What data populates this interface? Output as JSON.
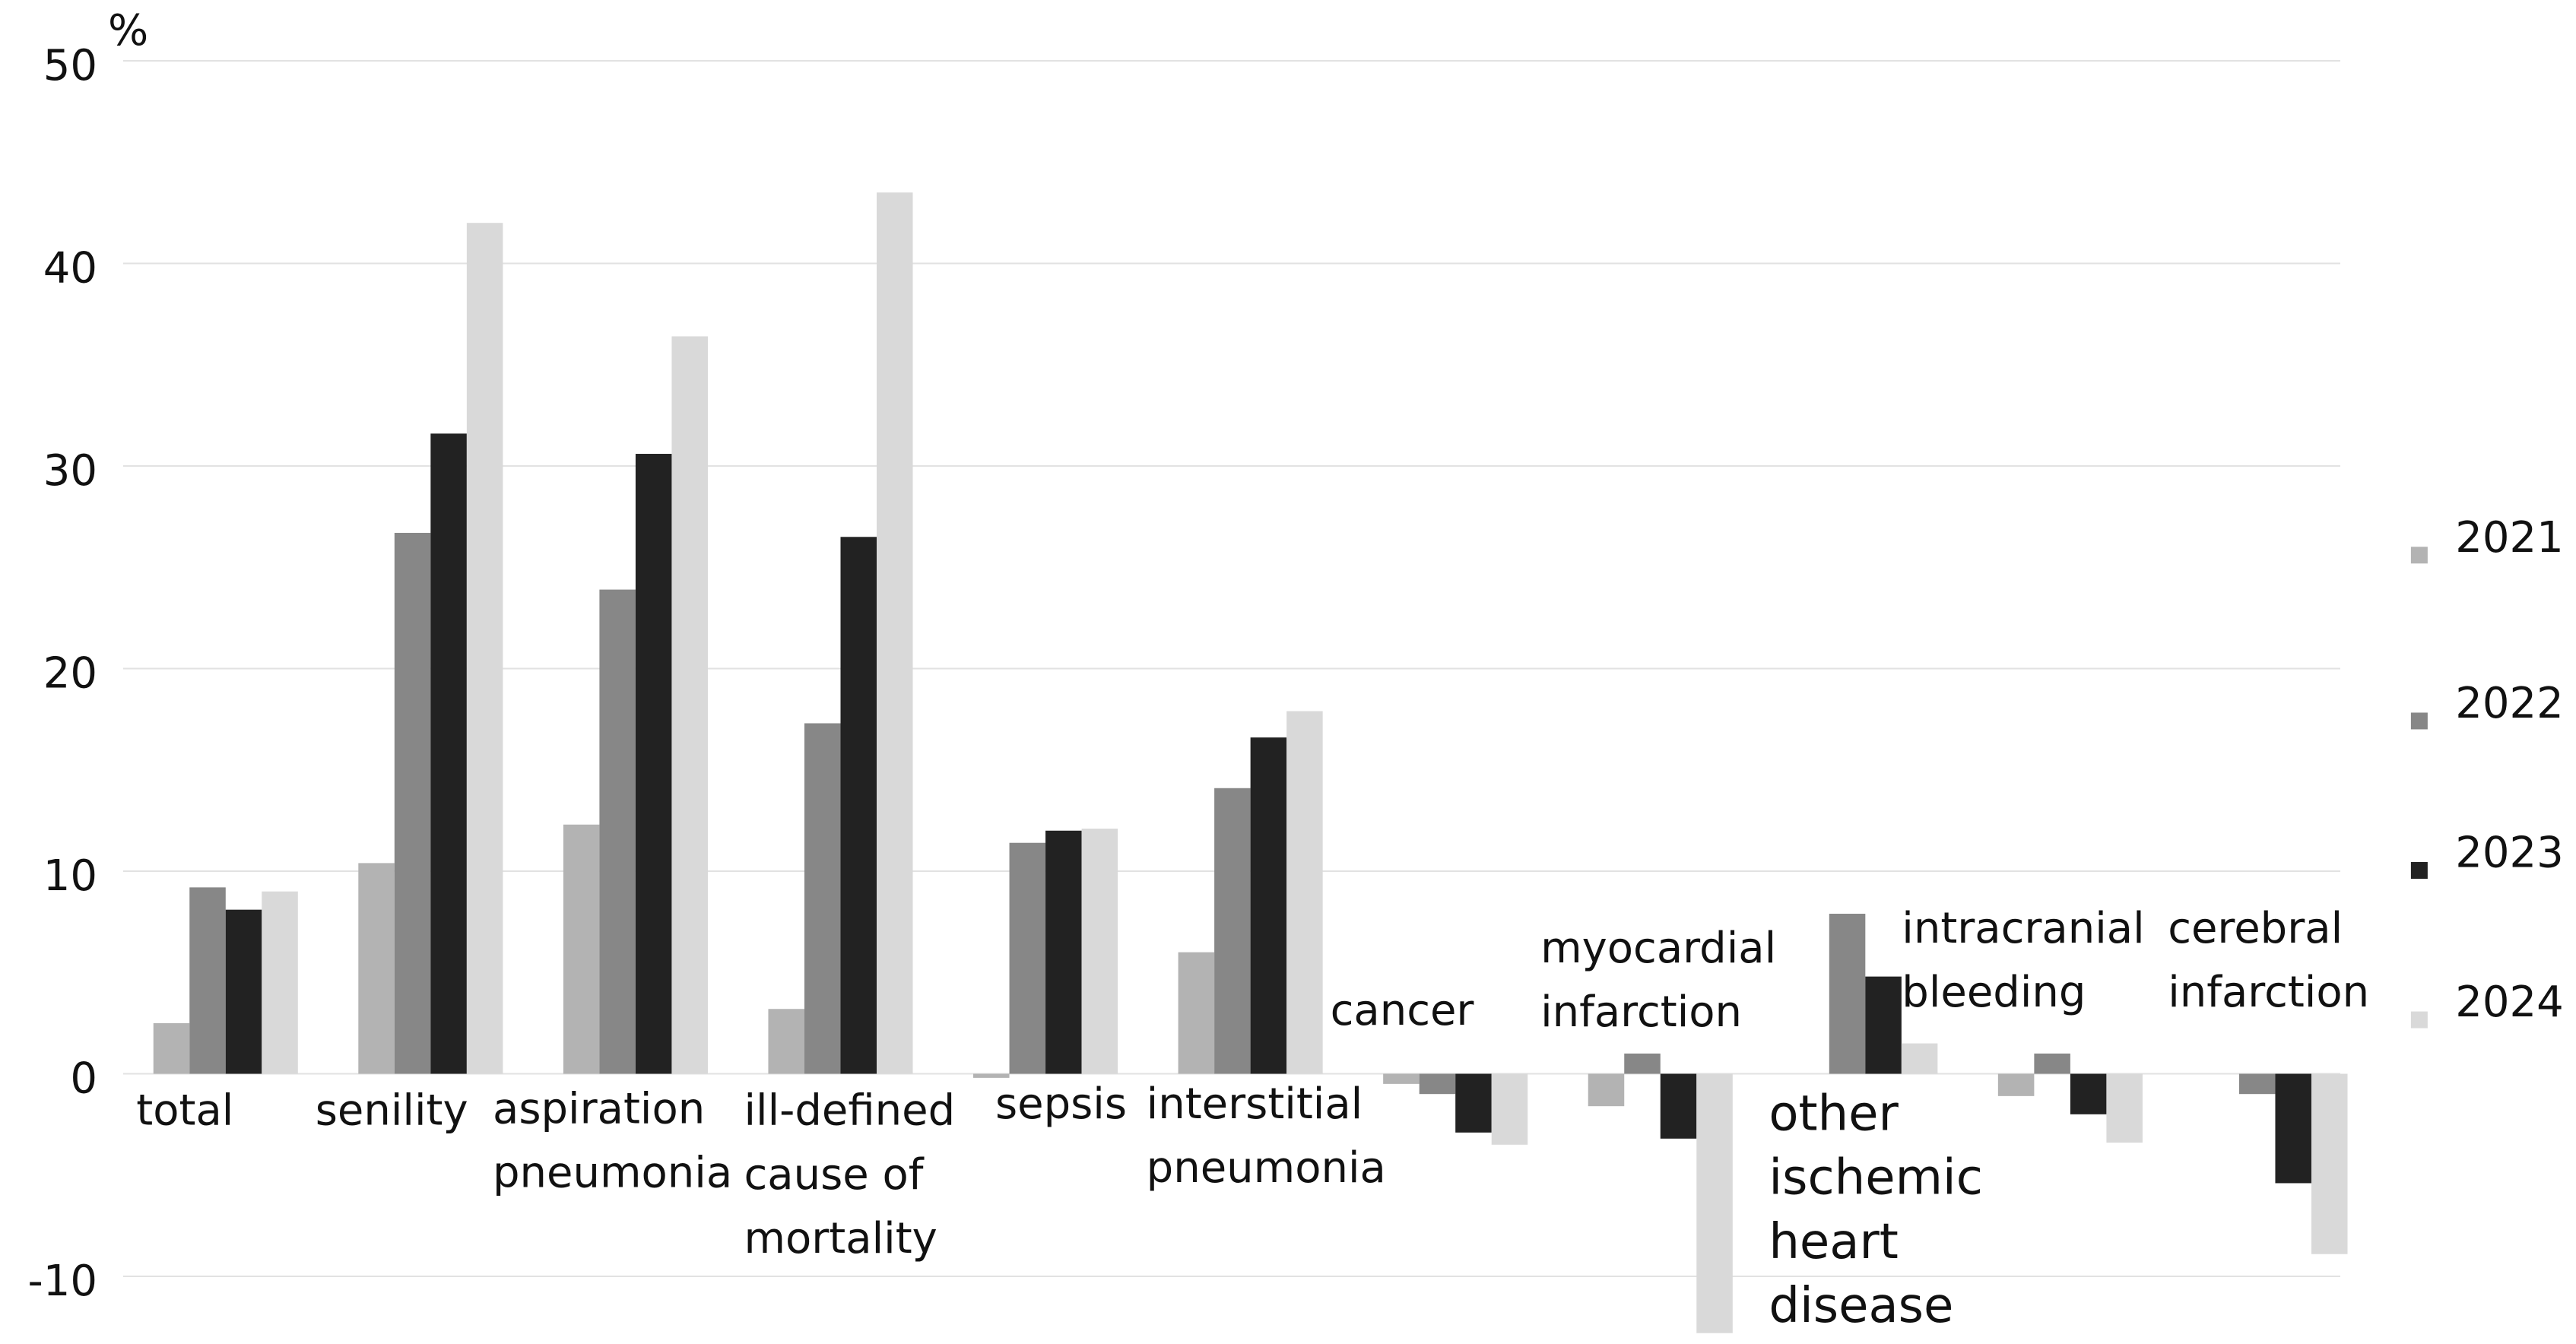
{
  "chart_data": {
    "type": "bar",
    "y_label": "%",
    "categories": [
      [
        "total"
      ],
      [
        "senility"
      ],
      [
        "aspiration",
        "pneumonia"
      ],
      [
        "ill-defined",
        "cause of",
        "mortality"
      ],
      [
        "sepsis"
      ],
      [
        "interstitial",
        "pneumonia"
      ],
      [
        "cancer"
      ],
      [
        "myocardial",
        "infarction"
      ],
      [
        "other",
        "ischemic",
        "heart",
        "disease"
      ],
      [
        "intracranial",
        "bleeding"
      ],
      [
        "cerebral",
        "infarction"
      ]
    ],
    "series": [
      {
        "name": "2021",
        "color": "#b3b3b3",
        "values": [
          2.5,
          10.4,
          12.3,
          3.2,
          -0.2,
          6.0,
          -0.5,
          -1.6,
          0,
          -1.1,
          0
        ]
      },
      {
        "name": "2022",
        "color": "#878787",
        "values": [
          9.2,
          26.7,
          23.9,
          17.3,
          11.4,
          14.1,
          -1.0,
          1.0,
          7.9,
          1.0,
          -1.0
        ]
      },
      {
        "name": "2023",
        "color": "#222222",
        "values": [
          8.1,
          31.6,
          30.6,
          26.5,
          12.0,
          16.6,
          -2.9,
          -3.2,
          4.8,
          -2.0,
          -5.4
        ]
      },
      {
        "name": "2024",
        "color": "#d9d9d9",
        "values": [
          9.0,
          42.0,
          36.4,
          43.5,
          12.1,
          17.9,
          -3.5,
          -12.8,
          1.5,
          -3.4,
          -8.9
        ]
      }
    ],
    "ylim": [
      -13,
      50
    ],
    "yticks": [
      -10,
      0,
      10,
      20,
      30,
      40,
      50
    ],
    "grid": true,
    "legend": "right"
  }
}
